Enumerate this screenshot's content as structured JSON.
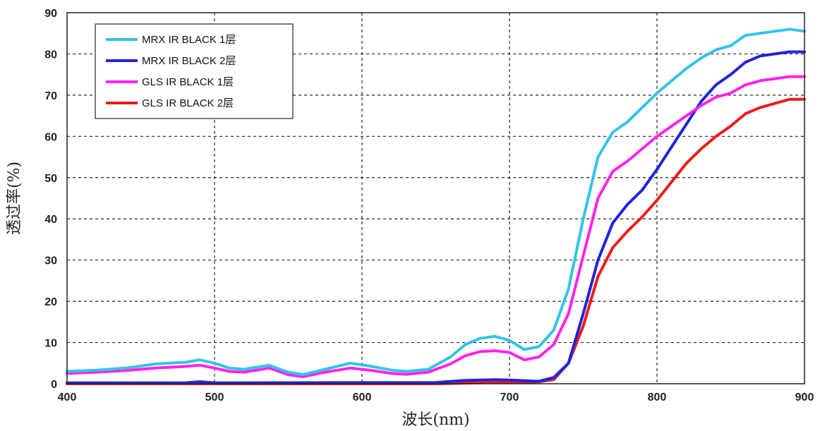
{
  "chart_data": {
    "type": "line",
    "xlabel": "波长(nm)",
    "ylabel": "透过率(%)",
    "xlim": [
      400,
      900
    ],
    "ylim": [
      0,
      90
    ],
    "xticks": [
      "400",
      "500",
      "600",
      "700",
      "800",
      "900"
    ],
    "yticks": [
      "0",
      "10",
      "20",
      "30",
      "40",
      "50",
      "60",
      "70",
      "80",
      "90"
    ],
    "grid": true,
    "legend_position": "top-left",
    "series": [
      {
        "name": "MRX IR BLACK 1层",
        "color": "#33c3e8",
        "points": [
          [
            400,
            3
          ],
          [
            420,
            3.3
          ],
          [
            440,
            3.8
          ],
          [
            460,
            4.8
          ],
          [
            480,
            5.2
          ],
          [
            490,
            5.8
          ],
          [
            500,
            5
          ],
          [
            510,
            3.8
          ],
          [
            520,
            3.5
          ],
          [
            537,
            4.5
          ],
          [
            550,
            2.8
          ],
          [
            560,
            2.2
          ],
          [
            575,
            3.5
          ],
          [
            592,
            5
          ],
          [
            605,
            4.3
          ],
          [
            620,
            3.3
          ],
          [
            630,
            3
          ],
          [
            645,
            3.5
          ],
          [
            660,
            6.5
          ],
          [
            670,
            9.5
          ],
          [
            680,
            11
          ],
          [
            690,
            11.5
          ],
          [
            700,
            10.5
          ],
          [
            710,
            8.3
          ],
          [
            720,
            9
          ],
          [
            730,
            13
          ],
          [
            740,
            23
          ],
          [
            750,
            40
          ],
          [
            760,
            55
          ],
          [
            770,
            61
          ],
          [
            780,
            63.5
          ],
          [
            790,
            67
          ],
          [
            800,
            70.5
          ],
          [
            810,
            73.5
          ],
          [
            820,
            76.5
          ],
          [
            830,
            79
          ],
          [
            840,
            81
          ],
          [
            850,
            82
          ],
          [
            860,
            84.5
          ],
          [
            870,
            85
          ],
          [
            880,
            85.5
          ],
          [
            890,
            86
          ],
          [
            900,
            85.5
          ]
        ]
      },
      {
        "name": "MRX IR BLACK 2层",
        "color": "#2222dd",
        "points": [
          [
            400,
            0.2
          ],
          [
            480,
            0.2
          ],
          [
            490,
            0.5
          ],
          [
            500,
            0.2
          ],
          [
            650,
            0.3
          ],
          [
            670,
            0.8
          ],
          [
            690,
            1
          ],
          [
            700,
            0.9
          ],
          [
            720,
            0.6
          ],
          [
            730,
            1.5
          ],
          [
            740,
            5
          ],
          [
            750,
            17
          ],
          [
            760,
            30
          ],
          [
            770,
            39
          ],
          [
            780,
            43.5
          ],
          [
            790,
            47
          ],
          [
            800,
            52
          ],
          [
            810,
            57.5
          ],
          [
            820,
            63
          ],
          [
            830,
            68.5
          ],
          [
            840,
            72.5
          ],
          [
            850,
            75
          ],
          [
            860,
            78
          ],
          [
            870,
            79.5
          ],
          [
            880,
            80
          ],
          [
            890,
            80.5
          ],
          [
            900,
            80.5
          ]
        ]
      },
      {
        "name": "GLS IR BLACK 1层",
        "color": "#ff22ee",
        "points": [
          [
            400,
            2.5
          ],
          [
            420,
            2.8
          ],
          [
            440,
            3.2
          ],
          [
            460,
            3.8
          ],
          [
            480,
            4.2
          ],
          [
            490,
            4.5
          ],
          [
            500,
            3.8
          ],
          [
            510,
            3
          ],
          [
            520,
            2.8
          ],
          [
            537,
            3.8
          ],
          [
            550,
            2.2
          ],
          [
            560,
            1.7
          ],
          [
            575,
            2.8
          ],
          [
            592,
            3.8
          ],
          [
            605,
            3.3
          ],
          [
            620,
            2.5
          ],
          [
            630,
            2.3
          ],
          [
            645,
            2.8
          ],
          [
            660,
            4.8
          ],
          [
            670,
            6.8
          ],
          [
            680,
            7.8
          ],
          [
            690,
            8
          ],
          [
            700,
            7.6
          ],
          [
            710,
            5.8
          ],
          [
            720,
            6.5
          ],
          [
            730,
            9.5
          ],
          [
            740,
            17
          ],
          [
            750,
            31
          ],
          [
            760,
            45
          ],
          [
            770,
            51.5
          ],
          [
            780,
            54
          ],
          [
            790,
            57
          ],
          [
            800,
            60
          ],
          [
            810,
            62.5
          ],
          [
            820,
            65
          ],
          [
            830,
            67.5
          ],
          [
            840,
            69.5
          ],
          [
            850,
            70.5
          ],
          [
            860,
            72.5
          ],
          [
            870,
            73.5
          ],
          [
            880,
            74
          ],
          [
            890,
            74.5
          ],
          [
            900,
            74.5
          ]
        ]
      },
      {
        "name": "GLS IR BLACK 2层",
        "color": "#ee1a1a",
        "points": [
          [
            400,
            0
          ],
          [
            650,
            0
          ],
          [
            690,
            0.3
          ],
          [
            710,
            0.3
          ],
          [
            720,
            0.5
          ],
          [
            730,
            1
          ],
          [
            740,
            5
          ],
          [
            750,
            14
          ],
          [
            760,
            26
          ],
          [
            770,
            33
          ],
          [
            780,
            37
          ],
          [
            790,
            40.5
          ],
          [
            800,
            44.5
          ],
          [
            810,
            49
          ],
          [
            820,
            53.5
          ],
          [
            830,
            57
          ],
          [
            840,
            60
          ],
          [
            850,
            62.5
          ],
          [
            860,
            65.5
          ],
          [
            870,
            67
          ],
          [
            880,
            68
          ],
          [
            890,
            69
          ],
          [
            900,
            69
          ]
        ]
      }
    ]
  }
}
